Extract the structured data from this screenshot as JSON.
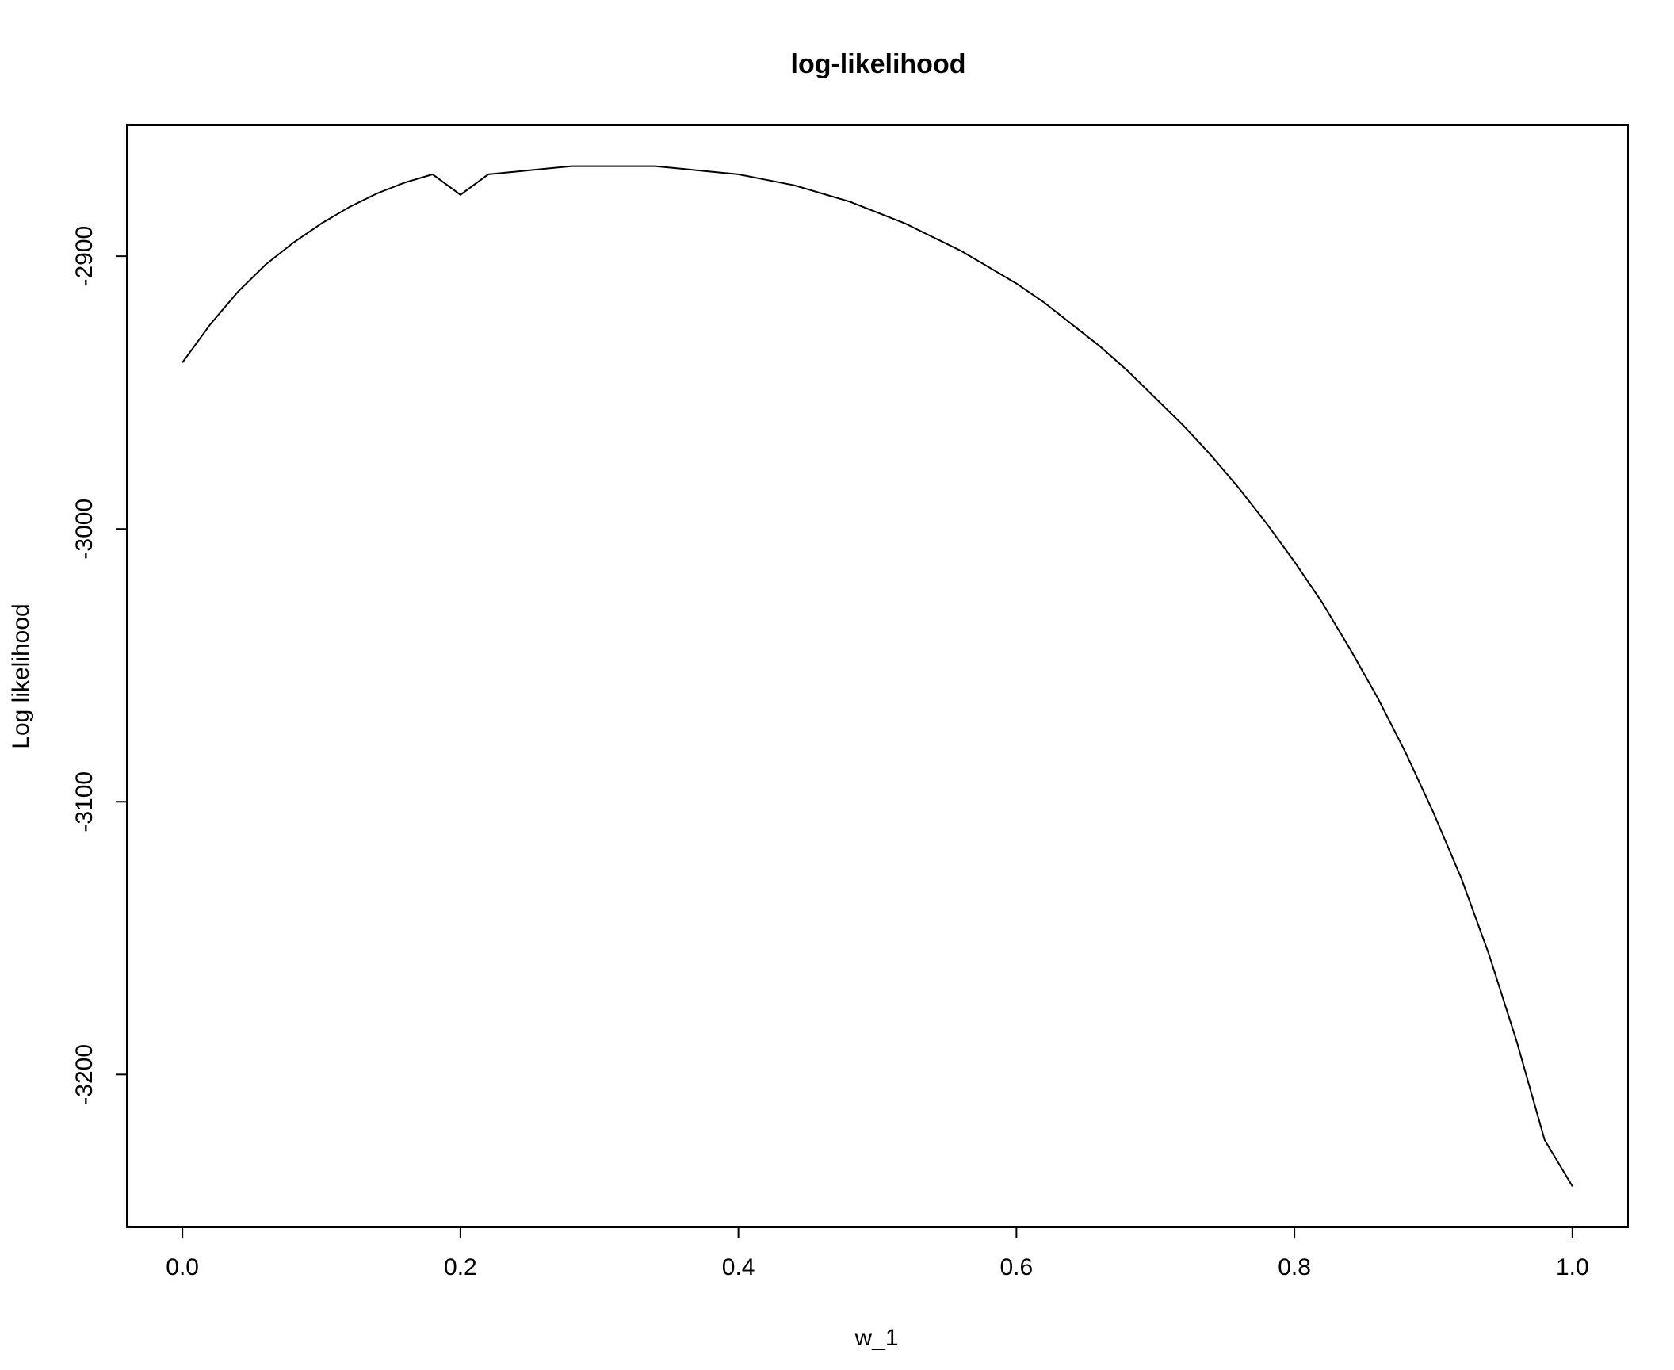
{
  "chart_data": {
    "type": "line",
    "title": "log-likelihood",
    "xlabel": "w_1",
    "ylabel": "Log likelihood",
    "xlim": [
      -0.04,
      1.04
    ],
    "ylim": [
      -3256,
      -2852
    ],
    "xticks": [
      0.0,
      0.2,
      0.4,
      0.6,
      0.8,
      1.0
    ],
    "xtick_labels": [
      "0.0",
      "0.2",
      "0.4",
      "0.6",
      "0.8",
      "1.0"
    ],
    "yticks": [
      -2900,
      -3000,
      -3100,
      -3200
    ],
    "ytick_labels": [
      "-2900",
      "-3000",
      "-3100",
      "-3200"
    ],
    "grid": false,
    "series": [
      {
        "x": [
          0.0,
          0.02,
          0.04,
          0.06,
          0.08,
          0.1,
          0.12,
          0.14,
          0.16,
          0.18,
          0.2,
          0.22,
          0.24,
          0.26,
          0.28,
          0.3,
          0.32,
          0.34,
          0.36,
          0.38,
          0.4,
          0.42,
          0.44,
          0.46,
          0.48,
          0.5,
          0.52,
          0.54,
          0.56,
          0.58,
          0.6,
          0.62,
          0.64,
          0.66,
          0.68,
          0.7,
          0.72,
          0.74,
          0.76,
          0.78,
          0.8,
          0.82,
          0.84,
          0.86,
          0.88,
          0.9,
          0.92,
          0.94,
          0.96,
          0.98,
          1.0
        ],
        "y": [
          -2939,
          -2925,
          -2913,
          -2903,
          -2895,
          -2888,
          -2882,
          -2877,
          -2873,
          -2870,
          -2877.5,
          -2870,
          -2869,
          -2868,
          -2867,
          -2867,
          -2867,
          -2867,
          -2868,
          -2869,
          -2870,
          -2872,
          -2874,
          -2877,
          -2880,
          -2884,
          -2888,
          -2893,
          -2898,
          -2904,
          -2910,
          -2917,
          -2925,
          -2933,
          -2942,
          -2952,
          -2962,
          -2973,
          -2985,
          -2998,
          -3012,
          -3027,
          -3044,
          -3062,
          -3082,
          -3104,
          -3128,
          -3156,
          -3188,
          -3224,
          -3241
        ]
      }
    ]
  }
}
